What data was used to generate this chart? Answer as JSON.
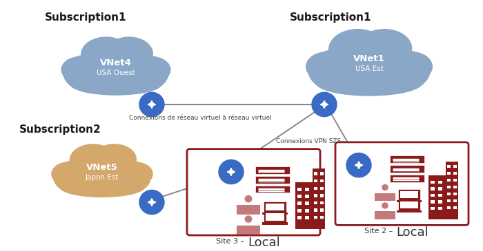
{
  "bg_color": "#ffffff",
  "sub1_left_label": "Subscription1",
  "sub1_right_label": "Subscription1",
  "sub2_label": "Subscription2",
  "vnet4_label": "VNet4",
  "vnet4_sub": "USA Ouest",
  "vnet4_color": "#8BA7C7",
  "vnet1_label": "VNet1",
  "vnet1_sub": "USA Est",
  "vnet1_color": "#8BA7C7",
  "vnet5_label": "VNet5",
  "vnet5_sub": "Japon Est",
  "vnet5_color": "#D4A76A",
  "blue_gw": "#3A6BC4",
  "gray_line": "#888888",
  "dark_red": "#8B1A1A",
  "person_color": "#C47A7A",
  "site3_label": "Site 3 –  Local",
  "site2_label": "Site 2 –  Local",
  "conn_vv": "Connexions de réseau virtuel à réseau virtuel",
  "conn_vpn": "Connexions VPN SZS",
  "text_dark": "#1a1a1a"
}
